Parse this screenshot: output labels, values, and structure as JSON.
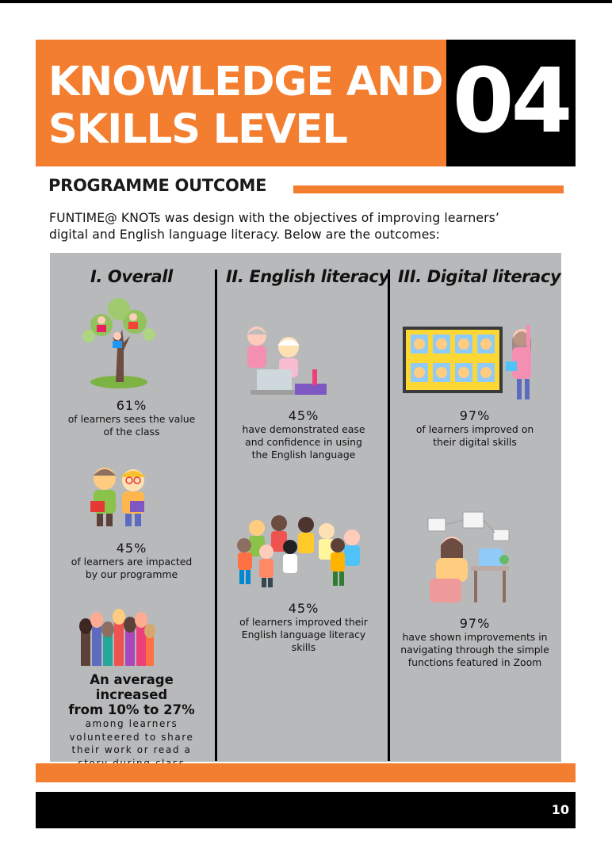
{
  "header": {
    "title_line1": "KNOWLEDGE AND",
    "title_line2": "SKILLS LEVEL",
    "number": "04"
  },
  "section": {
    "heading": "PROGRAMME OUTCOME",
    "intro_line1": "FUNTIME@ KNOTs was design with the objectives of improving learners’",
    "intro_line2": "digital and English language literacy. Below are the outcomes:"
  },
  "columns": [
    {
      "title": "I. Overall",
      "stats": [
        {
          "percent": "61%",
          "line1": "of learners sees the value",
          "line2": "of the class"
        },
        {
          "percent": "45%",
          "line1": "of learners are impacted",
          "line2": "by our programme"
        }
      ],
      "highlight": {
        "line1": "An average increased",
        "line2": "from 10% to 27%",
        "sub1": "among learners",
        "sub2": "volunteered to share",
        "sub3": "their work or read a",
        "sub4": "story during class"
      }
    },
    {
      "title": "II. English literacy",
      "stats": [
        {
          "percent": "45%",
          "line1": "have demonstrated ease",
          "line2": "and confidence in using",
          "line3": "the English language"
        },
        {
          "percent": "45%",
          "line1": "of learners improved their",
          "line2": "English language literacy",
          "line3": "skills"
        }
      ]
    },
    {
      "title": "III. Digital literacy",
      "stats": [
        {
          "percent": "97%",
          "line1": "of learners improved on",
          "line2": "their digital skills"
        },
        {
          "percent": "97%",
          "line1": "have shown improvements in",
          "line2": "navigating through the simple",
          "line3": "functions featured in Zoom"
        }
      ]
    }
  ],
  "footer": {
    "page_number": "10"
  },
  "colors": {
    "accent": "#f47e30",
    "panel": "#b8b9bb",
    "dark": "#000000"
  }
}
